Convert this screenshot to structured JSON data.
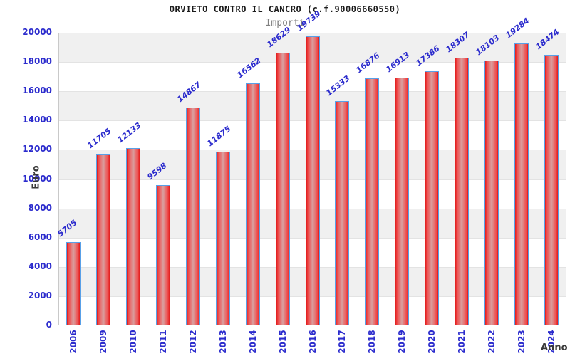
{
  "chart_data": {
    "type": "bar",
    "title": "ORVIETO CONTRO IL CANCRO (c.f.90006660550)",
    "subtitle": "Importi",
    "xlabel": "Anno",
    "ylabel": "Euro",
    "categories": [
      "2006",
      "2009",
      "2010",
      "2011",
      "2012",
      "2013",
      "2014",
      "2015",
      "2016",
      "2017",
      "2018",
      "2019",
      "2020",
      "2021",
      "2022",
      "2023",
      "2024"
    ],
    "values": [
      5705,
      11705,
      12133,
      9598,
      14867,
      11875,
      16562,
      18629,
      19739,
      15333,
      16876,
      16913,
      17386,
      18307,
      18103,
      19284,
      18474
    ],
    "ylim": [
      0,
      20000
    ],
    "ytick_step": 2000,
    "ytick_labels": [
      "20000",
      "18000",
      "16000",
      "14000",
      "12000",
      "10000",
      "8000",
      "6000",
      "4000",
      "2000",
      "0"
    ],
    "legend": "none",
    "grid": "horizontal gridlines with alternating bands",
    "band_pattern": "gray band from 18000-20000, alternating downward",
    "colors": {
      "tick_label_blue": "#2b2bcd",
      "value_label_blue": "#2b2bcd",
      "bar_edge_red": "#e01b1b",
      "bar_center": "#d9a0a0",
      "bar_border_blue": "#58a0e8",
      "band_gray": "#f0f0f0",
      "band_white": "#ffffff",
      "gridline": "#e3e3e3",
      "axis_text_gray": "#3a3a3a",
      "subtitle_gray": "#808080",
      "title_black": "#1a1a1a"
    }
  }
}
